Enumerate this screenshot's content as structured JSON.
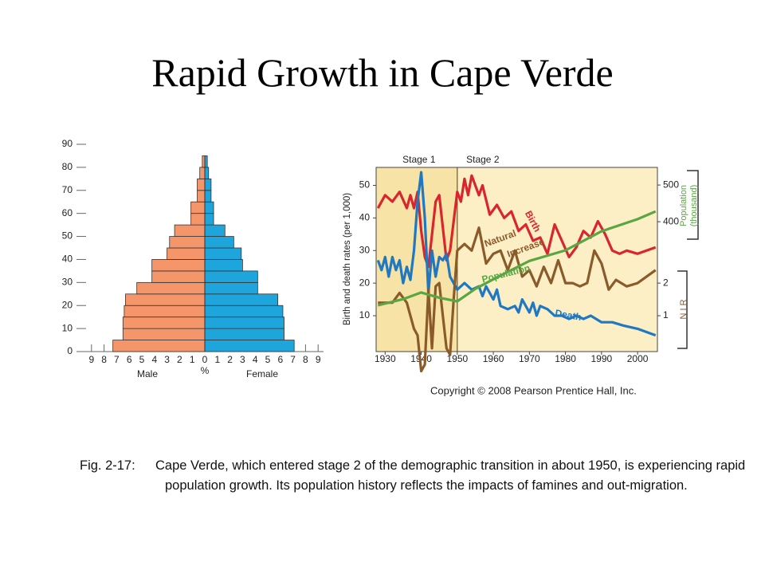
{
  "title": "Rapid Growth in Cape Verde",
  "copyright": "Copyright © 2008 Pearson Prentice Hall, Inc.",
  "caption": {
    "label": "Fig. 2-17:",
    "text": "Cape Verde, which entered stage 2 of the demographic transition in about 1950, is experiencing rapid population growth.  Its population history reflects the impacts of famines and out-migration."
  },
  "chart_data": [
    {
      "type": "pyramid",
      "age_bins": [
        0,
        5,
        10,
        15,
        20,
        25,
        30,
        35,
        40,
        45,
        50,
        55,
        60,
        65,
        70,
        75,
        80,
        85
      ],
      "ylim": [
        0,
        90
      ],
      "yticks": [
        0,
        10,
        20,
        30,
        40,
        50,
        60,
        70,
        80,
        90
      ],
      "xlim": [
        -9,
        9
      ],
      "xticks": [
        {
          "value": -9,
          "label": "9"
        },
        {
          "value": -8,
          "label": "8"
        },
        {
          "value": -7,
          "label": "7"
        },
        {
          "value": -6,
          "label": "6"
        },
        {
          "value": -5,
          "label": "5"
        },
        {
          "value": -4,
          "label": "4"
        },
        {
          "value": -3,
          "label": "3"
        },
        {
          "value": -2,
          "label": "2"
        },
        {
          "value": -1,
          "label": "1"
        },
        0,
        1,
        2,
        3,
        4,
        5,
        6,
        7,
        8,
        9
      ],
      "xlabel": "%",
      "series": [
        {
          "name": "Male",
          "color": "#f4956a",
          "side": "left",
          "values": [
            7.3,
            6.5,
            6.5,
            6.4,
            6.3,
            5.4,
            4.2,
            4.2,
            3.0,
            2.8,
            2.4,
            1.1,
            1.1,
            0.6,
            0.6,
            0.4,
            0.2
          ]
        },
        {
          "name": "Female",
          "color": "#1ea6dc",
          "side": "right",
          "values": [
            7.1,
            6.3,
            6.3,
            6.2,
            5.8,
            4.2,
            4.2,
            3.0,
            2.9,
            2.3,
            1.6,
            0.7,
            0.7,
            0.5,
            0.5,
            0.3,
            0.2
          ]
        }
      ]
    },
    {
      "type": "line",
      "xlim": [
        1927.5,
        2005.5
      ],
      "xticks": [
        1930,
        1940,
        1950,
        1960,
        1970,
        1980,
        1990,
        2000
      ],
      "ylim": [
        -1,
        55.5
      ],
      "yticks": [
        10,
        20,
        30,
        40,
        50
      ],
      "y2lim": [
        46,
        548
      ],
      "y2ticks": [
        400,
        500
      ],
      "y3lim": [
        -0.1,
        5.55
      ],
      "y3ticks": [
        1,
        2
      ],
      "ylabel": "Birth and death rates (per 1,000)",
      "y2label": [
        "Population",
        "(thousand)"
      ],
      "y3label": "N I R",
      "stages": [
        "Stage 1",
        "Stage 2"
      ],
      "stage_divider": 1950,
      "series": [
        {
          "name": "Birth",
          "color": "#d9262e",
          "x": [
            1928,
            1930,
            1932,
            1934,
            1936,
            1937,
            1938,
            1939,
            1940,
            1941,
            1942,
            1944,
            1945,
            1947,
            1948,
            1950,
            1951,
            1952,
            1953,
            1954,
            1956,
            1957,
            1959,
            1961,
            1963,
            1965,
            1967,
            1969,
            1971,
            1973,
            1975,
            1977,
            1979,
            1981,
            1983,
            1985,
            1987,
            1989,
            1991,
            1993,
            1995,
            1997,
            2000,
            2005
          ],
          "values": [
            43,
            47,
            45,
            48,
            43,
            47,
            43,
            48,
            36,
            28,
            25,
            45,
            47,
            27,
            30,
            48,
            45,
            52,
            47,
            53,
            47,
            50,
            41,
            44,
            40,
            42,
            36,
            38,
            33,
            34,
            29,
            38,
            33,
            28,
            31,
            36,
            34,
            39,
            35,
            30,
            29,
            30,
            29,
            31
          ]
        },
        {
          "name": "Death",
          "color": "#1f78c1",
          "x": [
            1928,
            1929,
            1930,
            1931,
            1932,
            1933,
            1934,
            1935,
            1936,
            1937,
            1938,
            1939,
            1940,
            1941,
            1942,
            1943,
            1944,
            1945,
            1946,
            1947,
            1948,
            1950,
            1952,
            1954,
            1956,
            1957,
            1958,
            1960,
            1961,
            1962,
            1964,
            1966,
            1967,
            1968,
            1970,
            1971,
            1972,
            1973,
            1975,
            1977,
            1979,
            1981,
            1983,
            1985,
            1987,
            1990,
            1993,
            1996,
            2000,
            2005
          ],
          "values": [
            27,
            24,
            28,
            22,
            28,
            24,
            27,
            20,
            25,
            21,
            30,
            45,
            54,
            40,
            17,
            30,
            22,
            28,
            27,
            29,
            22,
            18,
            20,
            18,
            19,
            16,
            19,
            15,
            18,
            13,
            12,
            13,
            11,
            15,
            11,
            14,
            10,
            13,
            12,
            10,
            10,
            9,
            10,
            9,
            10,
            8,
            8,
            7,
            6,
            4
          ]
        },
        {
          "name": "Natural Increase",
          "color": "#8b5a2b",
          "axis": "y3",
          "x": [
            1928,
            1932,
            1934,
            1936,
            1937,
            1938,
            1939,
            1940,
            1941,
            1942,
            1943,
            1944,
            1945,
            1946,
            1947,
            1948,
            1949,
            1950,
            1952,
            1954,
            1956,
            1958,
            1960,
            1962,
            1964,
            1966,
            1968,
            1970,
            1972,
            1974,
            1976,
            1978,
            1980,
            1982,
            1984,
            1986,
            1988,
            1990,
            1992,
            1994,
            1997,
            2000,
            2005
          ],
          "values": [
            1.4,
            1.4,
            1.7,
            1.4,
            1.0,
            0.6,
            0.4,
            -0.7,
            -0.5,
            1.8,
            0.0,
            1.9,
            2.0,
            1.0,
            0.0,
            -0.2,
            1.5,
            3.0,
            3.2,
            3.0,
            3.7,
            2.6,
            2.9,
            3.0,
            2.4,
            3.0,
            2.2,
            2.4,
            1.9,
            2.5,
            2.0,
            2.7,
            2.0,
            2.0,
            1.9,
            2.0,
            3.0,
            2.6,
            1.8,
            2.1,
            1.9,
            2.0,
            2.4
          ]
        },
        {
          "name": "Population",
          "color": "#5aa642",
          "axis": "y2",
          "x": [
            1928,
            1935,
            1940,
            1945,
            1950,
            1955,
            1960,
            1970,
            1980,
            1990,
            2000,
            2005
          ],
          "values": [
            172,
            189,
            207,
            193,
            183,
            217,
            243,
            293,
            322,
            374,
            407,
            428
          ]
        }
      ]
    }
  ]
}
